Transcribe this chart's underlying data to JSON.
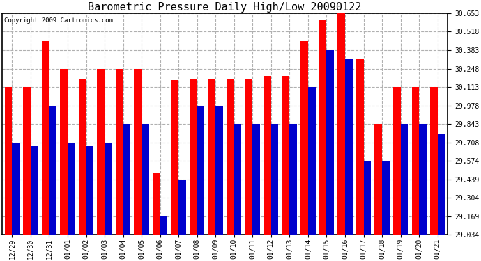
{
  "title": "Barometric Pressure Daily High/Low 20090122",
  "copyright": "Copyright 2009 Cartronics.com",
  "dates": [
    "12/29",
    "12/30",
    "12/31",
    "01/01",
    "01/02",
    "01/03",
    "01/04",
    "01/05",
    "01/06",
    "01/07",
    "01/08",
    "01/09",
    "01/10",
    "01/11",
    "01/12",
    "01/13",
    "01/14",
    "01/15",
    "01/16",
    "01/17",
    "01/18",
    "01/19",
    "01/20",
    "01/21"
  ],
  "highs": [
    30.113,
    30.113,
    30.45,
    30.248,
    30.168,
    30.248,
    30.248,
    30.248,
    29.49,
    30.165,
    30.168,
    30.168,
    30.168,
    30.168,
    30.195,
    30.195,
    30.45,
    30.6,
    30.653,
    30.315,
    29.843,
    30.113,
    30.113,
    30.113
  ],
  "lows": [
    29.708,
    29.68,
    29.978,
    29.708,
    29.68,
    29.708,
    29.843,
    29.843,
    29.169,
    29.439,
    29.978,
    29.978,
    29.843,
    29.843,
    29.843,
    29.843,
    30.113,
    30.383,
    30.315,
    29.574,
    29.574,
    29.843,
    29.843,
    29.775
  ],
  "high_color": "#ff0000",
  "low_color": "#0000cc",
  "ylim_min": 29.034,
  "ylim_max": 30.653,
  "yticks": [
    29.034,
    29.169,
    29.304,
    29.439,
    29.574,
    29.708,
    29.843,
    29.978,
    30.113,
    30.248,
    30.383,
    30.518,
    30.653
  ],
  "background_color": "#ffffff",
  "grid_color": "#b0b0b0",
  "bar_width": 0.4,
  "title_fontsize": 11,
  "tick_fontsize": 7,
  "copyright_fontsize": 6.5
}
